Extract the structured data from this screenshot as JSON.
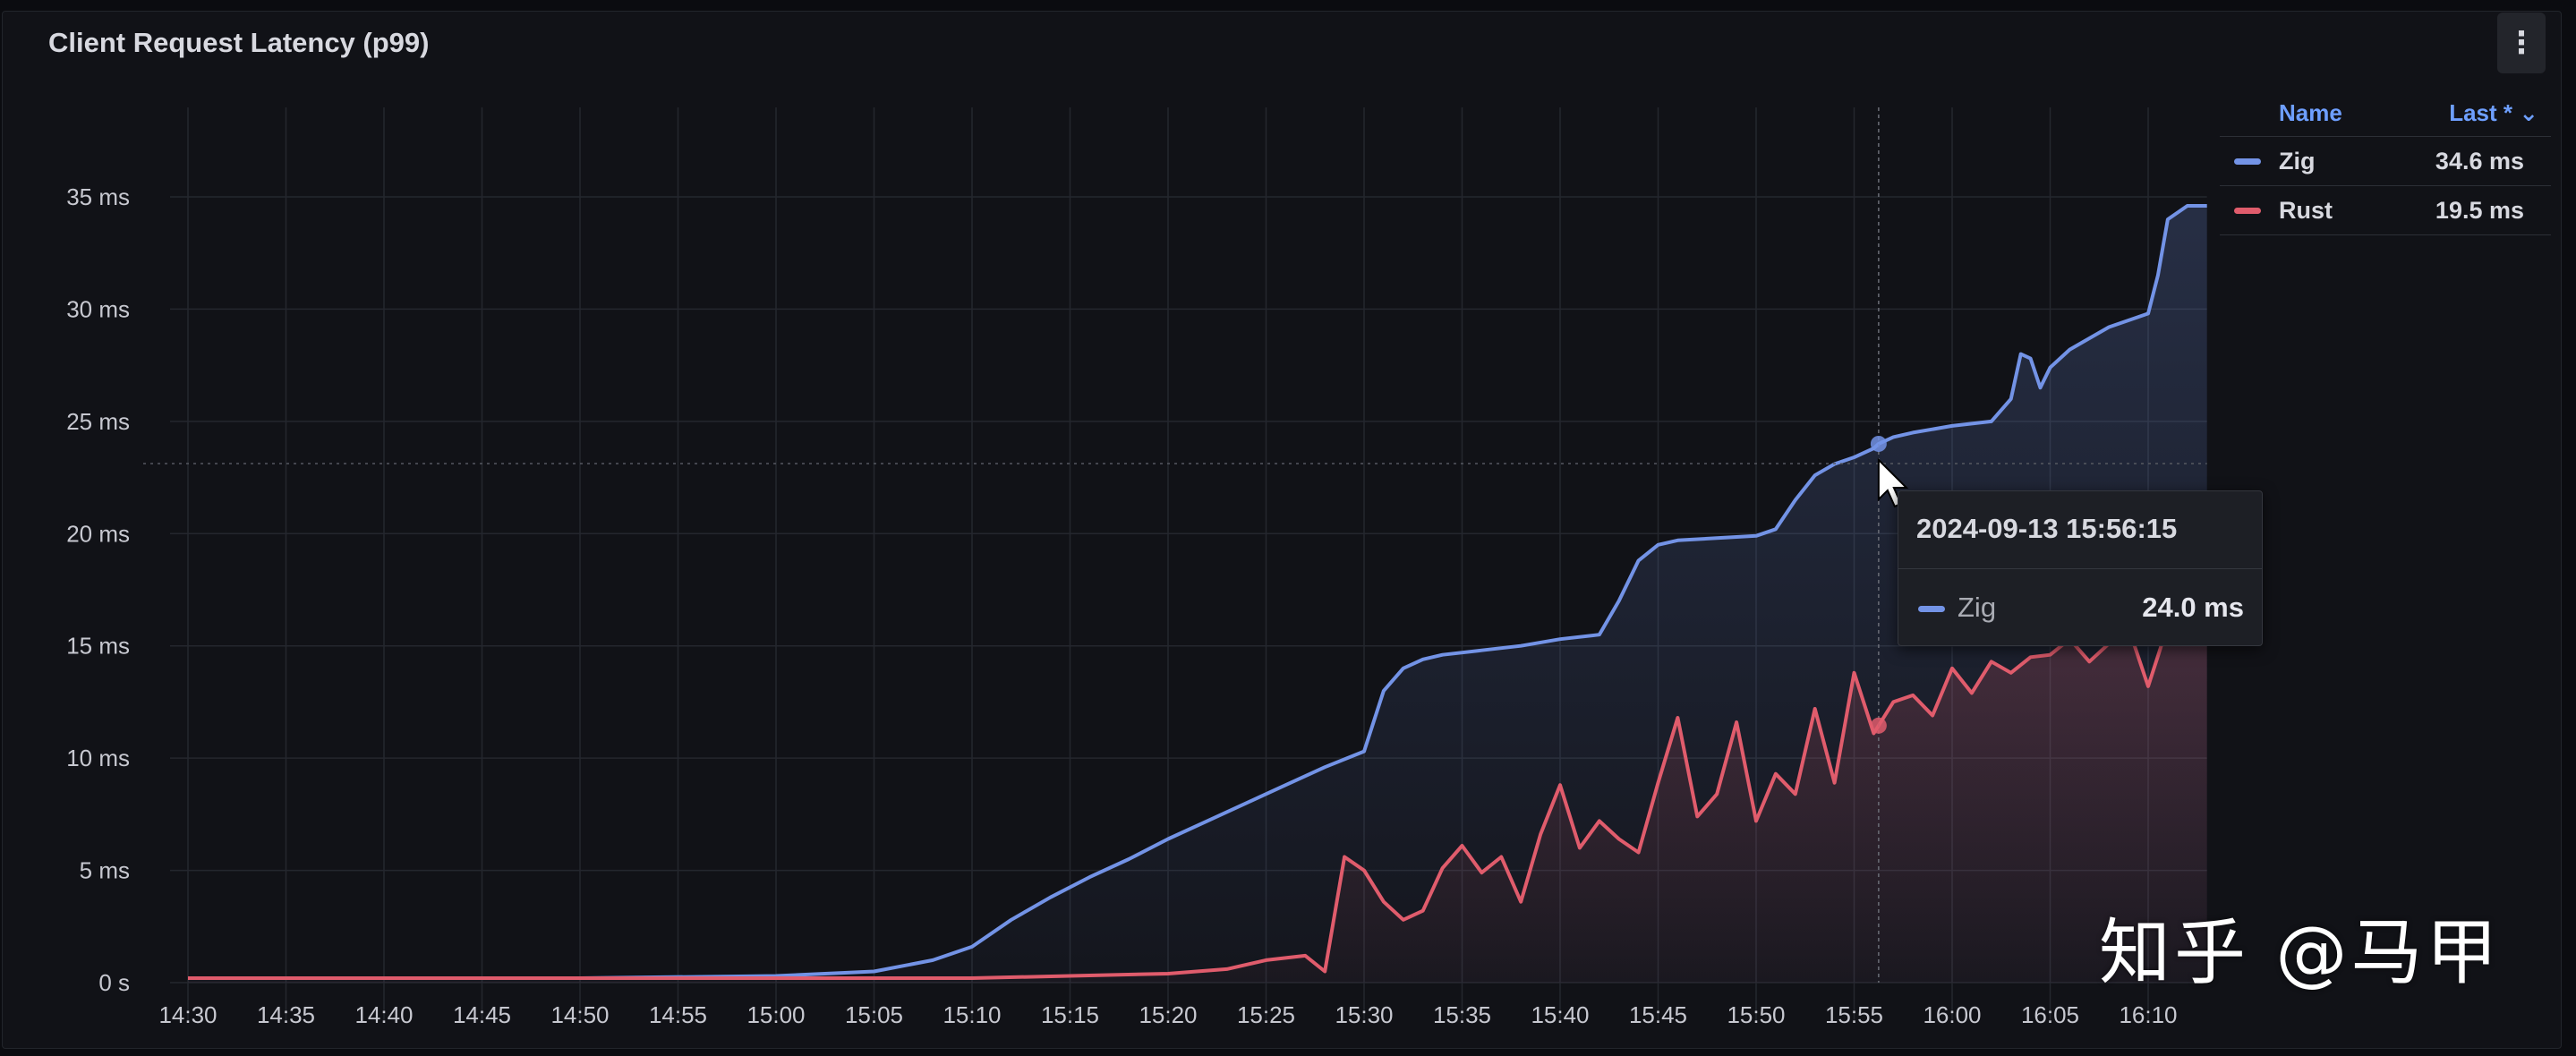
{
  "panel": {
    "title": "Client Request Latency (p99)",
    "menu_icon": "kebab-menu-icon"
  },
  "legend": {
    "name_header": "Name",
    "last_header": "Last * ⌄",
    "rows": [
      {
        "name": "Zig",
        "value": "34.6 ms",
        "color": "#7393e6"
      },
      {
        "name": "Rust",
        "value": "19.5 ms",
        "color": "#e05c6c"
      }
    ]
  },
  "tooltip": {
    "time": "2024-09-13 15:56:15",
    "series": "Zig",
    "value": "24.0 ms",
    "color": "#7393e6"
  },
  "watermark": "知乎 @马甲",
  "chart_data": {
    "type": "line",
    "title": "Client Request Latency (p99)",
    "xlabel": "",
    "ylabel": "",
    "x_unit": "minutes since 14:30",
    "xlim": [
      0,
      103
    ],
    "ylim": [
      0,
      35
    ],
    "y_tick_values": [
      0,
      5,
      10,
      15,
      20,
      25,
      30,
      35
    ],
    "y_tick_labels": [
      "0 s",
      "5 ms",
      "10 ms",
      "15 ms",
      "20 ms",
      "25 ms",
      "30 ms",
      "35 ms"
    ],
    "x_tick_values": [
      0,
      5,
      10,
      15,
      20,
      25,
      30,
      35,
      40,
      45,
      50,
      55,
      60,
      65,
      70,
      75,
      80,
      85,
      90,
      95,
      100
    ],
    "x_tick_labels": [
      "14:30",
      "14:35",
      "14:40",
      "14:45",
      "14:50",
      "14:55",
      "15:00",
      "15:05",
      "15:10",
      "15:15",
      "15:20",
      "15:25",
      "15:30",
      "15:35",
      "15:40",
      "15:45",
      "15:50",
      "15:55",
      "16:00",
      "16:05",
      "16:10"
    ],
    "grid": true,
    "legend_position": "top-right",
    "hover_x": 86.25,
    "series": [
      {
        "name": "Zig",
        "color": "#7393e6",
        "x": [
          0,
          10,
          20,
          30,
          35,
          38,
          40,
          42,
          44,
          46,
          48,
          50,
          52,
          54,
          56,
          58,
          60,
          61,
          62,
          63,
          64,
          66,
          68,
          70,
          72,
          73,
          74,
          75,
          76,
          78,
          80,
          81,
          82,
          83,
          84,
          85,
          86,
          86.25,
          87,
          88,
          90,
          92,
          93,
          93.5,
          94,
          94.5,
          95,
          96,
          98,
          100,
          100.5,
          101,
          102,
          103
        ],
        "y": [
          0.2,
          0.2,
          0.2,
          0.3,
          0.5,
          1.0,
          1.6,
          2.8,
          3.8,
          4.7,
          5.5,
          6.4,
          7.2,
          8.0,
          8.8,
          9.6,
          10.3,
          13.0,
          14.0,
          14.4,
          14.6,
          14.8,
          15.0,
          15.3,
          15.5,
          17.0,
          18.8,
          19.5,
          19.7,
          19.8,
          19.9,
          20.2,
          21.5,
          22.6,
          23.1,
          23.4,
          23.8,
          24.0,
          24.3,
          24.5,
          24.8,
          25.0,
          26.0,
          28.0,
          27.8,
          26.5,
          27.4,
          28.2,
          29.2,
          29.8,
          31.5,
          34.0,
          34.6,
          34.6
        ]
      },
      {
        "name": "Rust",
        "color": "#e05c6c",
        "x": [
          0,
          10,
          20,
          30,
          40,
          45,
          50,
          53,
          55,
          57,
          58,
          59,
          60,
          61,
          62,
          63,
          64,
          65,
          66,
          67,
          68,
          69,
          70,
          71,
          72,
          73,
          74,
          75,
          76,
          77,
          78,
          79,
          80,
          81,
          82,
          83,
          84,
          85,
          86,
          87,
          88,
          89,
          90,
          91,
          92,
          93,
          94,
          95,
          96,
          97,
          98,
          99,
          100,
          101,
          102,
          103
        ],
        "y": [
          0.2,
          0.2,
          0.2,
          0.2,
          0.2,
          0.3,
          0.4,
          0.6,
          1.0,
          1.2,
          0.5,
          5.6,
          5.0,
          3.6,
          2.8,
          3.2,
          5.1,
          6.1,
          4.9,
          5.6,
          3.6,
          6.6,
          8.8,
          6.0,
          7.2,
          6.4,
          5.8,
          8.9,
          11.8,
          7.4,
          8.4,
          11.6,
          7.2,
          9.3,
          8.4,
          12.2,
          8.9,
          13.8,
          11.1,
          12.5,
          12.8,
          11.9,
          14.0,
          12.9,
          14.3,
          13.8,
          14.5,
          14.6,
          15.3,
          14.3,
          15.1,
          15.8,
          13.2,
          15.9,
          19.5,
          19.5
        ]
      }
    ]
  }
}
